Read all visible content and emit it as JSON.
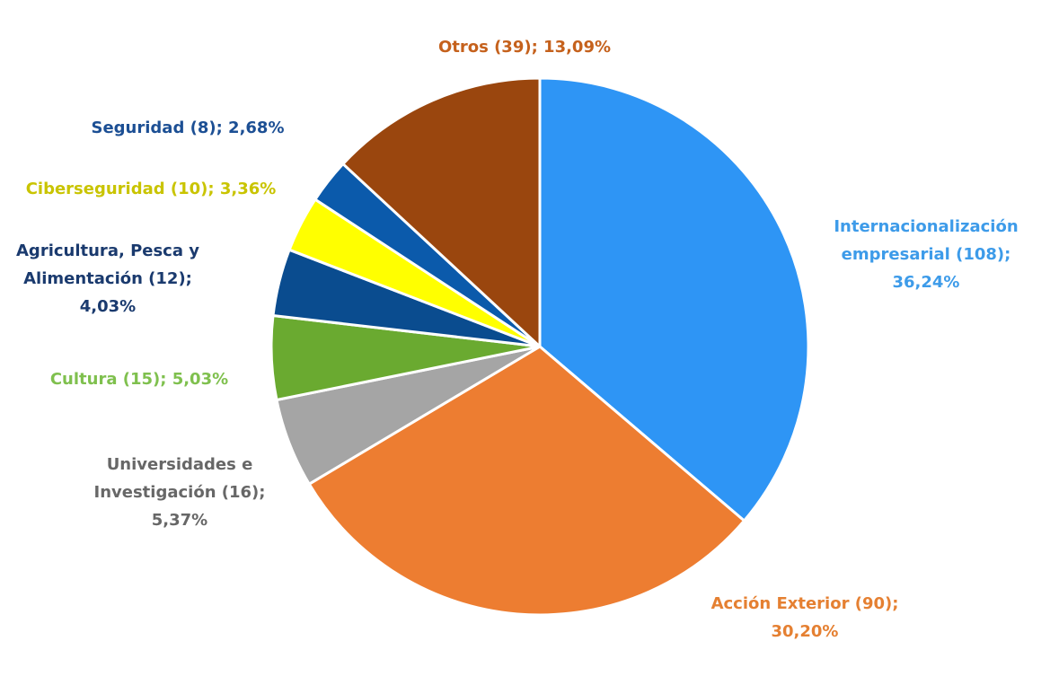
{
  "chart_data": {
    "type": "pie",
    "start_angle_deg": 0,
    "direction": "clockwise",
    "slices": [
      {
        "name": "Internacionalización empresarial",
        "count": 108,
        "percent": 36.24,
        "color": "#2e95f5",
        "label_color": "#3d9be9",
        "label_lines": [
          "Internacionalización",
          "empresarial (108);",
          "36,24%"
        ]
      },
      {
        "name": "Acción Exterior",
        "count": 90,
        "percent": 30.2,
        "color": "#ed7d31",
        "label_color": "#e58032",
        "label_lines": [
          "Acción Exterior (90);",
          "30,20%"
        ]
      },
      {
        "name": "Universidades e Investigación",
        "count": 16,
        "percent": 5.37,
        "color": "#a5a5a5",
        "label_color": "#676767",
        "label_lines": [
          "Universidades e",
          "Investigación (16);",
          "5,37%"
        ]
      },
      {
        "name": "Cultura",
        "count": 15,
        "percent": 5.03,
        "color": "#6aaa30",
        "label_color": "#7fc04e",
        "label_lines": [
          "Cultura (15); 5,03%"
        ]
      },
      {
        "name": "Agricultura, Pesca y Alimentación",
        "count": 12,
        "percent": 4.03,
        "color": "#0a4c8f",
        "label_color": "#1a3a6e",
        "label_lines": [
          "Agricultura, Pesca y",
          "Alimentación (12);",
          "4,03%"
        ]
      },
      {
        "name": "Ciberseguridad",
        "count": 10,
        "percent": 3.36,
        "color": "#ffff00",
        "label_color": "#c9c400",
        "label_lines": [
          "Ciberseguridad (10); 3,36%"
        ]
      },
      {
        "name": "Seguridad",
        "count": 8,
        "percent": 2.68,
        "color": "#0b5aab",
        "label_color": "#1c4f94",
        "label_lines": [
          "Seguridad (8); 2,68%"
        ]
      },
      {
        "name": "Otros",
        "count": 39,
        "percent": 13.09,
        "color": "#9a460e",
        "label_color": "#c5611c",
        "label_lines": [
          "Otros (39); 13,09%"
        ]
      }
    ]
  }
}
